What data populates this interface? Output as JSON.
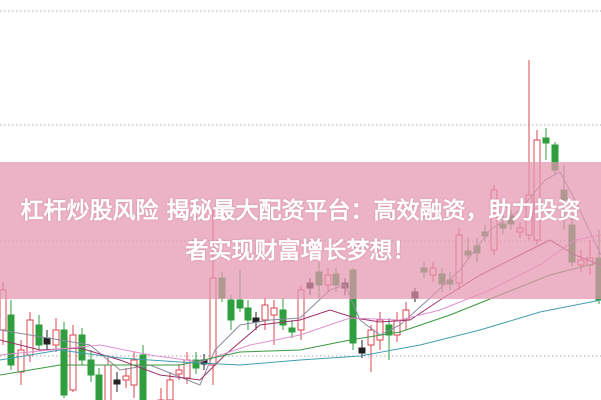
{
  "article": {
    "title": "杠杆炒股风险 揭秘最大配资平台：高效融资，助力投资者实现财富增长梦想！"
  },
  "chart": {
    "type": "candlestick",
    "gridlines": "dotted horizontal",
    "colors": {
      "up": "#d9444f",
      "down": "#2e9e3e",
      "ma_short": "#8a8aa0",
      "ma_mid": "#a0306a",
      "ma_long": "#e090d0",
      "ma_green": "#3a9a40",
      "ma_teal": "#40a0b0",
      "banner": "#e496b2"
    }
  }
}
